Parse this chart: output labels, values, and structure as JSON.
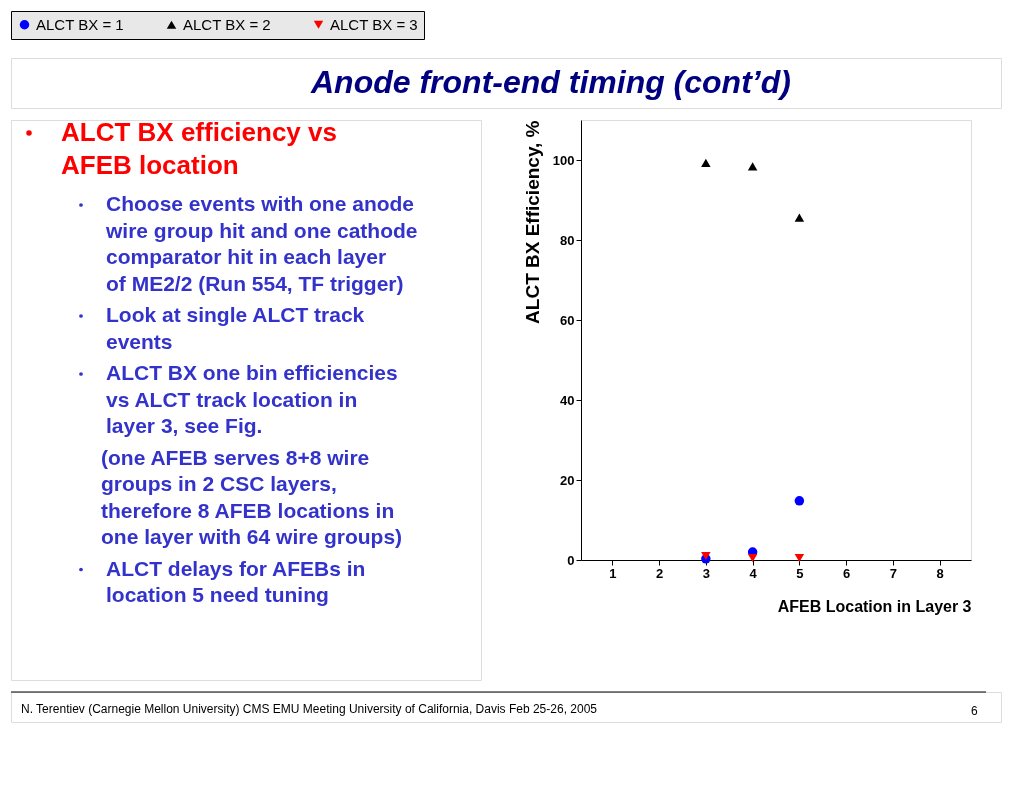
{
  "chart_data": {
    "type": "scatter",
    "title": "Anode front-end timing  (cont’d)",
    "xlabel": "AFEB Location in Layer 3",
    "ylabel": "ALCT BX Efficiency, %",
    "x": [
      3,
      4,
      5
    ],
    "series": [
      {
        "name": "ALCT BX = 1",
        "color": "#0000ff",
        "marker": "circle",
        "values": [
          0.3,
          2,
          14.8
        ]
      },
      {
        "name": "ALCT BX = 2",
        "color": "#000000",
        "marker": "triangle",
        "values": [
          99.3,
          98.4,
          85.6
        ]
      },
      {
        "name": "ALCT BX = 3",
        "color": "#ff0000",
        "marker": "triangle-down",
        "values": [
          1,
          0.5,
          0.5
        ]
      }
    ],
    "xlim": [
      0.33,
      8.67
    ],
    "xticks": [
      1,
      2,
      3,
      4,
      5,
      6,
      7,
      8
    ],
    "ylim": [
      0,
      110
    ],
    "yticks": [
      0,
      20,
      40,
      60,
      80,
      100
    ],
    "grid": false,
    "legend": "top",
    "annotations": [
      "ALCT BX efficiency vs AFEB location",
      "Choose events with one anode wire group hit and one cathode comparator hit in each layer of ME2/2 (Run 554, TF trigger)",
      "Look at single  ALCT track events",
      "ALCT BX one bin efficiencies vs ALCT track location in layer 3, see Fig.",
      "(one AFEB serves 8+8 wire groups  in 2 CSC layers, therefore  8 AFEB locations in one layer with 64 wire groups)",
      "ALCT delays for AFEBs in location 5 need tuning",
      "N. Terentiev  (Carnegie Mellon University)    CMS EMU Meeting   University of California, Davis   Feb 25-26, 2005",
      "6"
    ]
  }
}
